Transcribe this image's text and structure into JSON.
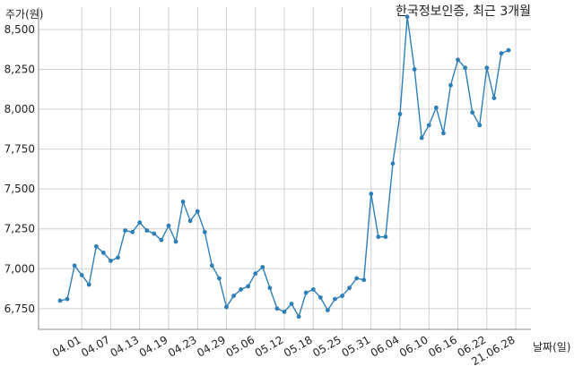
{
  "chart_data": {
    "type": "line",
    "title": "한국정보인증, 최근 3개월",
    "ylabel": "주가(원)",
    "xlabel": "날짜(일)",
    "ylim": [
      6620,
      8640
    ],
    "yticks": [
      6750,
      7000,
      7250,
      7500,
      7750,
      8000,
      8250,
      8500
    ],
    "ytick_labels": [
      "6,750",
      "7,000",
      "7,250",
      "7,500",
      "7,750",
      "8,000",
      "8,250",
      "8,500"
    ],
    "xticks": [
      {
        "label": "04.01",
        "index": 3
      },
      {
        "label": "04.07",
        "index": 7
      },
      {
        "label": "04.13",
        "index": 11
      },
      {
        "label": "04.19",
        "index": 15
      },
      {
        "label": "04.23",
        "index": 19
      },
      {
        "label": "04.29",
        "index": 23
      },
      {
        "label": "05.06",
        "index": 27
      },
      {
        "label": "05.12",
        "index": 31
      },
      {
        "label": "05.18",
        "index": 35
      },
      {
        "label": "05.25",
        "index": 39
      },
      {
        "label": "05.31",
        "index": 43
      },
      {
        "label": "06.04",
        "index": 47
      },
      {
        "label": "06.10",
        "index": 51
      },
      {
        "label": "06.16",
        "index": 55
      },
      {
        "label": "06.22",
        "index": 59
      },
      {
        "label": "21.06.28",
        "index": 63
      }
    ],
    "grid": true,
    "line_color": "#2e7fb8",
    "series": [
      {
        "values": [
          6800,
          6810,
          7020,
          6960,
          6900,
          7140,
          7100,
          7050,
          7070,
          7240,
          7230,
          7290,
          7240,
          7220,
          7180,
          7270,
          7170,
          7420,
          7300,
          7360,
          7230,
          7020,
          6940,
          6760,
          6830,
          6870,
          6890,
          6970,
          7010,
          6880,
          6750,
          6730,
          6780,
          6700,
          6850,
          6870,
          6820,
          6740,
          6810,
          6830,
          6880,
          6940,
          6930,
          7470,
          7200,
          7200,
          7660,
          7970,
          8580,
          8250,
          7820,
          7900,
          8010,
          7850,
          8150,
          8310,
          8260,
          7980,
          7900,
          8260,
          8070,
          8350,
          8370
        ]
      }
    ]
  }
}
